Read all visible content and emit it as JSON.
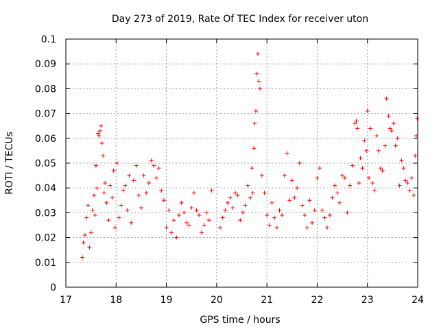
{
  "chart_data": {
    "type": "scatter",
    "title": "Day 273 of 2019, Rate Of TEC Index for receiver uton",
    "xlabel": "GPS time / hours",
    "ylabel": "ROTI / TECUs",
    "xlim": [
      17,
      24
    ],
    "ylim": [
      0,
      0.1
    ],
    "x_ticks": [
      17,
      18,
      19,
      20,
      21,
      22,
      23,
      24
    ],
    "x_tick_labels": [
      "17",
      "18",
      "19",
      "20",
      "21",
      "22",
      "23",
      "24"
    ],
    "y_ticks": [
      0,
      0.01,
      0.02,
      0.03,
      0.04,
      0.05,
      0.06,
      0.07,
      0.08,
      0.09,
      0.1
    ],
    "y_tick_labels": [
      "0",
      "0.01",
      "0.02",
      "0.03",
      "0.04",
      "0.05",
      "0.06",
      "0.07",
      "0.08",
      "0.09",
      "0.1"
    ],
    "grid": true,
    "marker": "+",
    "series_color": "#ff0000",
    "gaps": [
      [
        19.93,
        20.05
      ]
    ],
    "series": [
      {
        "name": "ROTI",
        "x": [
          17.33,
          17.35,
          17.38,
          17.41,
          17.44,
          17.47,
          17.5,
          17.53,
          17.56,
          17.58,
          17.6,
          17.62,
          17.64,
          17.66,
          17.68,
          17.7,
          17.72,
          17.74,
          17.76,
          17.78,
          17.81,
          17.85,
          17.88,
          17.92,
          17.95,
          17.98,
          18.02,
          18.06,
          18.1,
          18.14,
          18.18,
          18.22,
          18.26,
          18.3,
          18.35,
          18.4,
          18.45,
          18.5,
          18.55,
          18.6,
          18.65,
          18.7,
          18.75,
          18.8,
          18.85,
          18.9,
          18.95,
          19.0,
          19.05,
          19.1,
          19.15,
          19.2,
          19.25,
          19.3,
          19.35,
          19.4,
          19.45,
          19.5,
          19.55,
          19.6,
          19.65,
          19.7,
          19.75,
          19.8,
          19.85,
          19.9,
          20.07,
          20.12,
          20.17,
          20.22,
          20.27,
          20.32,
          20.37,
          20.42,
          20.47,
          20.52,
          20.57,
          20.62,
          20.67,
          20.7,
          20.72,
          20.74,
          20.76,
          20.78,
          20.8,
          20.82,
          20.84,
          20.86,
          20.9,
          20.95,
          21.0,
          21.05,
          21.1,
          21.15,
          21.2,
          21.25,
          21.3,
          21.35,
          21.4,
          21.45,
          21.5,
          21.55,
          21.6,
          21.65,
          21.7,
          21.75,
          21.8,
          21.85,
          21.9,
          21.95,
          22.0,
          22.05,
          22.1,
          22.15,
          22.2,
          22.25,
          22.3,
          22.35,
          22.4,
          22.45,
          22.5,
          22.55,
          22.6,
          22.65,
          22.7,
          22.75,
          22.78,
          22.8,
          22.83,
          22.86,
          22.9,
          22.94,
          22.98,
          23.0,
          23.03,
          23.06,
          23.1,
          23.14,
          23.18,
          23.22,
          23.26,
          23.3,
          23.35,
          23.38,
          23.42,
          23.45,
          23.48,
          23.52,
          23.56,
          23.6,
          23.64,
          23.68,
          23.72,
          23.76,
          23.8,
          23.84,
          23.88,
          23.92,
          23.95,
          23.97,
          23.99
        ],
        "y": [
          0.012,
          0.018,
          0.021,
          0.028,
          0.033,
          0.016,
          0.022,
          0.031,
          0.037,
          0.029,
          0.049,
          0.04,
          0.062,
          0.061,
          0.063,
          0.065,
          0.058,
          0.053,
          0.038,
          0.042,
          0.034,
          0.027,
          0.041,
          0.036,
          0.047,
          0.024,
          0.05,
          0.028,
          0.033,
          0.039,
          0.041,
          0.031,
          0.045,
          0.026,
          0.043,
          0.049,
          0.037,
          0.032,
          0.045,
          0.038,
          0.042,
          0.051,
          0.049,
          0.044,
          0.048,
          0.039,
          0.035,
          0.024,
          0.031,
          0.022,
          0.027,
          0.02,
          0.029,
          0.034,
          0.03,
          0.026,
          0.025,
          0.032,
          0.038,
          0.031,
          0.029,
          0.022,
          0.025,
          0.03,
          0.027,
          0.039,
          0.024,
          0.028,
          0.031,
          0.034,
          0.036,
          0.032,
          0.038,
          0.037,
          0.027,
          0.03,
          0.033,
          0.041,
          0.036,
          0.048,
          0.038,
          0.056,
          0.066,
          0.071,
          0.086,
          0.094,
          0.083,
          0.08,
          0.045,
          0.038,
          0.029,
          0.025,
          0.034,
          0.028,
          0.024,
          0.031,
          0.029,
          0.045,
          0.054,
          0.035,
          0.043,
          0.036,
          0.04,
          0.05,
          0.033,
          0.029,
          0.024,
          0.035,
          0.026,
          0.031,
          0.044,
          0.048,
          0.031,
          0.028,
          0.024,
          0.029,
          0.036,
          0.041,
          0.038,
          0.034,
          0.045,
          0.044,
          0.03,
          0.041,
          0.049,
          0.066,
          0.067,
          0.064,
          0.042,
          0.052,
          0.048,
          0.059,
          0.055,
          0.071,
          0.044,
          0.064,
          0.042,
          0.039,
          0.061,
          0.055,
          0.048,
          0.047,
          0.057,
          0.076,
          0.069,
          0.064,
          0.063,
          0.066,
          0.057,
          0.06,
          0.041,
          0.051,
          0.048,
          0.043,
          0.042,
          0.039,
          0.044,
          0.037,
          0.053,
          0.061,
          0.068
        ]
      }
    ]
  }
}
